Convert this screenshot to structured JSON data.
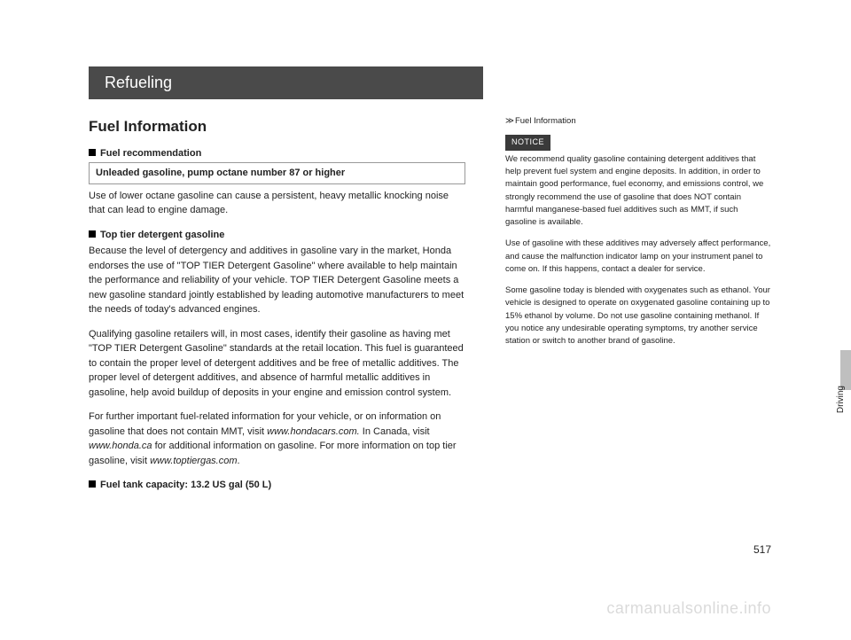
{
  "chapter": "Refueling",
  "section_title": "Fuel Information",
  "fuel_rec": {
    "heading": "Fuel recommendation",
    "spec": "Unleaded gasoline, pump octane number 87 or higher",
    "body": "Use of lower octane gasoline can cause a persistent, heavy metallic knocking noise that can lead to engine damage."
  },
  "top_tier": {
    "heading": "Top tier detergent gasoline",
    "p1": "Because the level of detergency and additives in gasoline vary in the market, Honda endorses the use of \"TOP TIER Detergent Gasoline\" where available to help maintain the performance and reliability of your vehicle. TOP TIER Detergent Gasoline meets a new gasoline standard jointly established by leading automotive manufacturers to meet the needs of today's advanced engines.",
    "p2": "Qualifying gasoline retailers will, in most cases, identify their gasoline as having met \"TOP TIER Detergent Gasoline\" standards at the retail location. This fuel is guaranteed to contain the proper level of detergent additives and be free of metallic additives. The proper level of detergent additives, and absence of harmful metallic additives in gasoline, help avoid buildup of deposits in your engine and emission control system.",
    "p3_a": "For further important fuel-related information for your vehicle, or on information on gasoline that does not contain MMT, visit ",
    "p3_url1": "www.hondacars.com.",
    "p3_b": " In Canada, visit ",
    "p3_url2": "www.honda.ca",
    "p3_c": " for additional information on gasoline. For more information on top tier gasoline, visit ",
    "p3_url3": "www.toptiergas.com",
    "p3_d": "."
  },
  "tank": {
    "heading": "Fuel tank capacity: 13.2 US gal (50 L)"
  },
  "side": {
    "heading": "Fuel Information",
    "notice": "NOTICE",
    "p1": "We recommend quality gasoline containing detergent additives that help prevent fuel system and engine deposits. In addition, in order to maintain good performance, fuel economy, and emissions control, we strongly recommend the use of gasoline that does NOT contain harmful manganese-based fuel additives such as MMT, if such gasoline is available.",
    "p2": "Use of gasoline with these additives may adversely affect performance, and cause the malfunction indicator lamp on your instrument panel to come on. If this happens, contact a dealer for service.",
    "p3": "Some gasoline today is blended with oxygenates such as ethanol. Your vehicle is designed to operate on oxygenated gasoline containing up to 15% ethanol by volume. Do not use gasoline containing methanol. If you notice any undesirable operating symptoms, try another service station or switch to another brand of gasoline."
  },
  "tab": "Driving",
  "page_number": "517",
  "watermark": "carmanualsonline.info"
}
